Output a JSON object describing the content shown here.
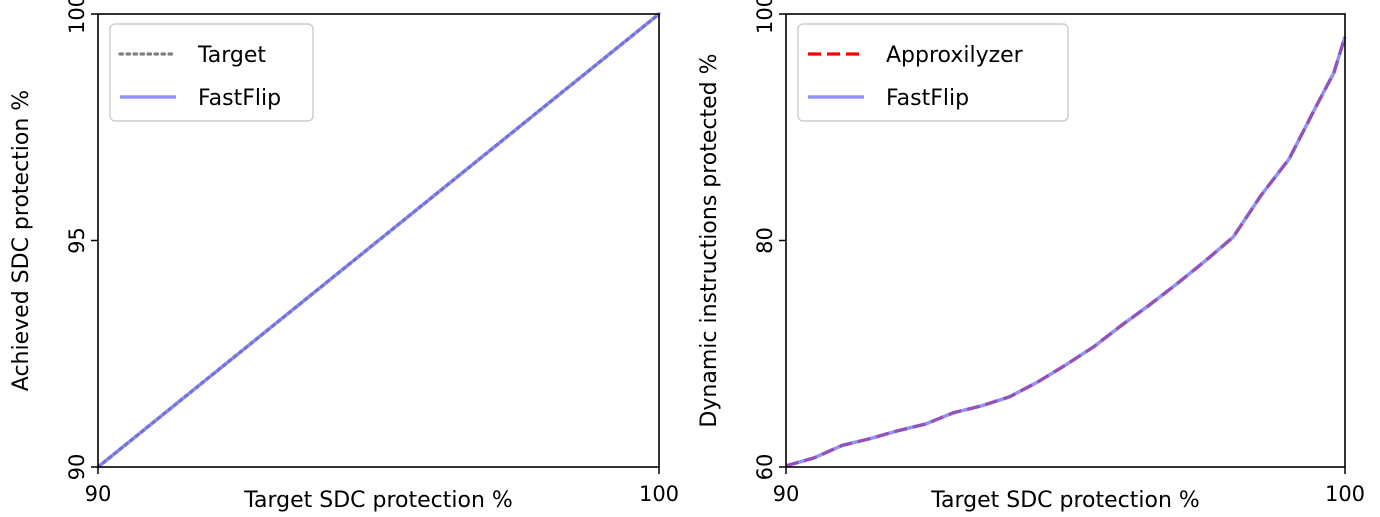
{
  "chart_data": [
    {
      "type": "line",
      "title": "",
      "xlabel": "Target SDC protection %",
      "ylabel": "Achieved SDC protection %",
      "xlim": [
        90,
        100
      ],
      "ylim": [
        90,
        100
      ],
      "xticks": [
        90,
        100
      ],
      "yticks": [
        90,
        95,
        100
      ],
      "grid": false,
      "legend_position": "top-left",
      "series": [
        {
          "name": "Target",
          "style": "dotted",
          "color": "#808080",
          "x": [
            90,
            100
          ],
          "y": [
            90,
            100
          ]
        },
        {
          "name": "FastFlip",
          "style": "solid",
          "color": "#6e6ef5",
          "x": [
            90,
            100
          ],
          "y": [
            90,
            100
          ]
        }
      ]
    },
    {
      "type": "line",
      "title": "",
      "xlabel": "Target SDC protection %",
      "ylabel": "Dynamic instructions protected %",
      "xlim": [
        90,
        100
      ],
      "ylim": [
        60,
        100
      ],
      "xticks": [
        90,
        100
      ],
      "yticks": [
        60,
        80,
        100
      ],
      "grid": false,
      "legend_position": "top-left",
      "series": [
        {
          "name": "Approxilyzer",
          "style": "dashed",
          "color": "#ff0000",
          "x": [
            90,
            90.5,
            91,
            91.5,
            92,
            92.5,
            93,
            93.5,
            94,
            94.5,
            95,
            95.5,
            96,
            96.5,
            97,
            97.5,
            98,
            98.5,
            99,
            99.5,
            99.8,
            100
          ],
          "y": [
            60.1,
            60.8,
            61.9,
            62.5,
            63.2,
            63.8,
            64.8,
            65.4,
            66.2,
            67.5,
            69.0,
            70.6,
            72.5,
            74.3,
            76.2,
            78.2,
            80.3,
            84.0,
            87.2,
            92.0,
            94.8,
            98.0
          ]
        },
        {
          "name": "FastFlip",
          "style": "solid",
          "color": "#6e6ef5",
          "x": [
            90,
            90.5,
            91,
            91.5,
            92,
            92.5,
            93,
            93.5,
            94,
            94.5,
            95,
            95.5,
            96,
            96.5,
            97,
            97.5,
            98,
            98.5,
            99,
            99.5,
            99.8,
            100
          ],
          "y": [
            60.1,
            60.8,
            61.9,
            62.5,
            63.2,
            63.8,
            64.8,
            65.4,
            66.2,
            67.5,
            69.0,
            70.6,
            72.5,
            74.3,
            76.2,
            78.2,
            80.3,
            84.0,
            87.2,
            92.0,
            94.8,
            98.0
          ]
        }
      ]
    }
  ]
}
